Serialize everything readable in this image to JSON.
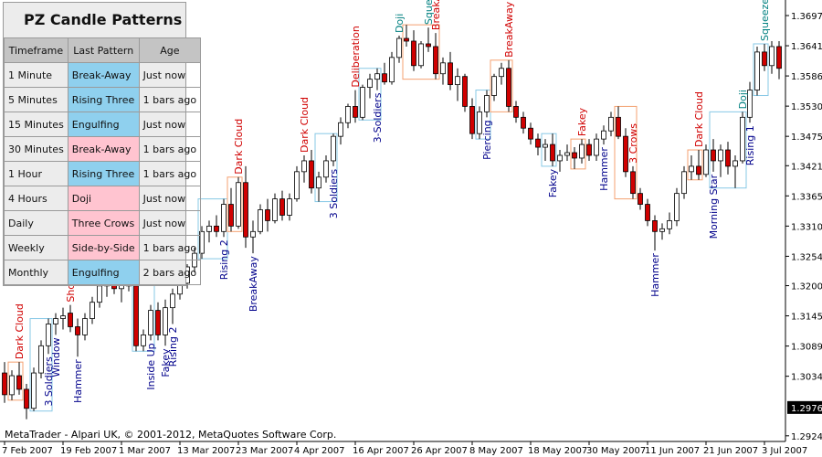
{
  "chart_data": {
    "type": "candlestick",
    "ylim": [
      1.29141,
      1.37172
    ],
    "yticks": [
      {
        "value": 1.3697,
        "label": "1.36970"
      },
      1.36415,
      {
        "value": 1.3586,
        "label": "1.35860"
      },
      1.35305,
      {
        "value": 1.3475,
        "label": "1.34750"
      },
      {
        "value": 1.3421,
        "label": "1.34210"
      },
      1.33655,
      {
        "value": 1.331,
        "label": "1.33100"
      },
      1.32545,
      1.32005,
      {
        "value": 1.3145,
        "label": "1.31450"
      },
      1.30895,
      {
        "value": 1.3034,
        "label": "1.30340"
      },
      1.29245
    ],
    "current_price": 1.29765,
    "bull_color": "#ffffff",
    "bear_color": "#d00000",
    "categories": [
      "7 Feb 2007",
      null,
      null,
      null,
      null,
      null,
      null,
      null,
      "19 Feb 2007",
      null,
      null,
      null,
      null,
      null,
      null,
      null,
      "1 Mar 2007",
      null,
      null,
      null,
      null,
      null,
      null,
      null,
      "13 Mar 2007",
      null,
      null,
      null,
      null,
      null,
      null,
      null,
      "23 Mar 2007",
      null,
      null,
      null,
      null,
      null,
      null,
      null,
      "4 Apr 2007",
      null,
      null,
      null,
      null,
      null,
      null,
      null,
      "16 Apr 2007",
      null,
      null,
      null,
      null,
      null,
      null,
      null,
      "26 Apr 2007",
      null,
      null,
      null,
      null,
      null,
      null,
      null,
      "8 May 2007",
      null,
      null,
      null,
      null,
      null,
      null,
      null,
      "18 May 2007",
      null,
      null,
      null,
      null,
      null,
      null,
      null,
      "30 May 2007",
      null,
      null,
      null,
      null,
      null,
      null,
      null,
      "11 Jun 2007",
      null,
      null,
      null,
      null,
      null,
      null,
      null,
      "21 Jun 2007",
      null,
      null,
      null,
      null,
      null,
      null,
      null,
      "3 Jul 2007",
      null,
      null
    ],
    "ohlc": [
      [
        1.304,
        1.306,
        1.2985,
        1.3
      ],
      [
        1.3,
        1.3045,
        1.299,
        1.3035
      ],
      [
        1.3035,
        1.306,
        1.3,
        1.301
      ],
      [
        1.301,
        1.302,
        1.2955,
        1.2975
      ],
      [
        1.2975,
        1.305,
        1.297,
        1.304
      ],
      [
        1.304,
        1.31,
        1.303,
        1.309
      ],
      [
        1.309,
        1.314,
        1.3075,
        1.313
      ],
      [
        1.313,
        1.315,
        1.311,
        1.314
      ],
      [
        1.314,
        1.316,
        1.312,
        1.3145
      ],
      [
        1.315,
        1.3165,
        1.3115,
        1.3125
      ],
      [
        1.3125,
        1.314,
        1.307,
        1.311
      ],
      [
        1.311,
        1.315,
        1.31,
        1.314
      ],
      [
        1.314,
        1.318,
        1.313,
        1.317
      ],
      [
        1.317,
        1.321,
        1.316,
        1.32
      ],
      [
        1.32,
        1.323,
        1.318,
        1.322
      ],
      [
        1.322,
        1.324,
        1.3185,
        1.3195
      ],
      [
        1.3195,
        1.322,
        1.317,
        1.321
      ],
      [
        1.321,
        1.3225,
        1.319,
        1.32
      ],
      [
        1.32,
        1.321,
        1.308,
        1.309
      ],
      [
        1.309,
        1.312,
        1.308,
        1.311
      ],
      [
        1.311,
        1.3165,
        1.31,
        1.3155
      ],
      [
        1.3155,
        1.317,
        1.31,
        1.311
      ],
      [
        1.311,
        1.3175,
        1.309,
        1.316
      ],
      [
        1.316,
        1.3195,
        1.313,
        1.3185
      ],
      [
        1.3185,
        1.3215,
        1.3175,
        1.3205
      ],
      [
        1.3205,
        1.324,
        1.3195,
        1.3235
      ],
      [
        1.3235,
        1.327,
        1.3225,
        1.326
      ],
      [
        1.326,
        1.331,
        1.325,
        1.33
      ],
      [
        1.33,
        1.332,
        1.328,
        1.331
      ],
      [
        1.331,
        1.333,
        1.329,
        1.33
      ],
      [
        1.33,
        1.336,
        1.329,
        1.335
      ],
      [
        1.335,
        1.338,
        1.33,
        1.331
      ],
      [
        1.331,
        1.34,
        1.3305,
        1.339
      ],
      [
        1.339,
        1.342,
        1.327,
        1.329
      ],
      [
        1.329,
        1.332,
        1.326,
        1.33
      ],
      [
        1.33,
        1.335,
        1.3295,
        1.334
      ],
      [
        1.334,
        1.336,
        1.33,
        1.332
      ],
      [
        1.332,
        1.337,
        1.3315,
        1.336
      ],
      [
        1.336,
        1.3375,
        1.332,
        1.333
      ],
      [
        1.333,
        1.337,
        1.332,
        1.336
      ],
      [
        1.336,
        1.342,
        1.3355,
        1.341
      ],
      [
        1.341,
        1.344,
        1.339,
        1.343
      ],
      [
        1.343,
        1.345,
        1.337,
        1.338
      ],
      [
        1.338,
        1.341,
        1.3355,
        1.34
      ],
      [
        1.34,
        1.344,
        1.339,
        1.343
      ],
      [
        1.343,
        1.348,
        1.342,
        1.3475
      ],
      [
        1.3475,
        1.351,
        1.346,
        1.35
      ],
      [
        1.35,
        1.3535,
        1.349,
        1.353
      ],
      [
        1.353,
        1.356,
        1.35,
        1.351
      ],
      [
        1.351,
        1.357,
        1.3505,
        1.3565
      ],
      [
        1.3565,
        1.359,
        1.3545,
        1.358
      ],
      [
        1.358,
        1.36,
        1.356,
        1.359
      ],
      [
        1.359,
        1.361,
        1.357,
        1.3575
      ],
      [
        1.3575,
        1.363,
        1.357,
        1.362
      ],
      [
        1.362,
        1.366,
        1.361,
        1.3655
      ],
      [
        1.3655,
        1.368,
        1.364,
        1.365
      ],
      [
        1.365,
        1.367,
        1.3595,
        1.3605
      ],
      [
        1.3605,
        1.365,
        1.36,
        1.3645
      ],
      [
        1.3645,
        1.3675,
        1.363,
        1.364
      ],
      [
        1.364,
        1.3665,
        1.358,
        1.359
      ],
      [
        1.359,
        1.362,
        1.357,
        1.361
      ],
      [
        1.361,
        1.363,
        1.356,
        1.357
      ],
      [
        1.357,
        1.36,
        1.354,
        1.3585
      ],
      [
        1.3585,
        1.359,
        1.352,
        1.353
      ],
      [
        1.353,
        1.3545,
        1.347,
        1.348
      ],
      [
        1.348,
        1.353,
        1.347,
        1.352
      ],
      [
        1.352,
        1.356,
        1.351,
        1.355
      ],
      [
        1.355,
        1.359,
        1.354,
        1.3585
      ],
      [
        1.3585,
        1.361,
        1.357,
        1.36
      ],
      [
        1.36,
        1.3615,
        1.352,
        1.353
      ],
      [
        1.353,
        1.354,
        1.35,
        1.351
      ],
      [
        1.351,
        1.352,
        1.348,
        1.349
      ],
      [
        1.349,
        1.35,
        1.346,
        1.347
      ],
      [
        1.347,
        1.348,
        1.344,
        1.3455
      ],
      [
        1.3455,
        1.347,
        1.343,
        1.346
      ],
      [
        1.346,
        1.348,
        1.342,
        1.343
      ],
      [
        1.343,
        1.345,
        1.341,
        1.344
      ],
      [
        1.344,
        1.346,
        1.343,
        1.3445
      ],
      [
        1.3445,
        1.3455,
        1.3415,
        1.3435
      ],
      [
        1.3435,
        1.347,
        1.3425,
        1.346
      ],
      [
        1.346,
        1.347,
        1.343,
        1.344
      ],
      [
        1.344,
        1.348,
        1.343,
        1.347
      ],
      [
        1.347,
        1.3495,
        1.346,
        1.3485
      ],
      [
        1.3485,
        1.352,
        1.3475,
        1.351
      ],
      [
        1.351,
        1.353,
        1.347,
        1.3475
      ],
      [
        1.3475,
        1.349,
        1.34,
        1.341
      ],
      [
        1.341,
        1.342,
        1.336,
        1.337
      ],
      [
        1.337,
        1.338,
        1.334,
        1.335
      ],
      [
        1.335,
        1.336,
        1.331,
        1.332
      ],
      [
        1.332,
        1.333,
        1.3265,
        1.33
      ],
      [
        1.33,
        1.3315,
        1.3285,
        1.3305
      ],
      [
        1.3305,
        1.3335,
        1.3295,
        1.332
      ],
      [
        1.332,
        1.338,
        1.331,
        1.337
      ],
      [
        1.337,
        1.342,
        1.336,
        1.341
      ],
      [
        1.341,
        1.344,
        1.3395,
        1.342
      ],
      [
        1.342,
        1.345,
        1.3395,
        1.3405
      ],
      [
        1.3405,
        1.346,
        1.34,
        1.345
      ],
      [
        1.345,
        1.347,
        1.341,
        1.343
      ],
      [
        1.343,
        1.346,
        1.34,
        1.345
      ],
      [
        1.345,
        1.3465,
        1.3405,
        1.342
      ],
      [
        1.342,
        1.344,
        1.338,
        1.343
      ],
      [
        1.343,
        1.352,
        1.3425,
        1.351
      ],
      [
        1.351,
        1.3575,
        1.35,
        1.356
      ],
      [
        1.356,
        1.364,
        1.355,
        1.363
      ],
      [
        1.363,
        1.3645,
        1.3595,
        1.3605
      ],
      [
        1.3605,
        1.365,
        1.359,
        1.364
      ],
      [
        1.364,
        1.365,
        1.358,
        1.36
      ]
    ],
    "pattern_colors": {
      "bullish": {
        "text": "#00008b",
        "box": "#87c8e6"
      },
      "bearish": {
        "text": "#d00000",
        "box": "#f4a070"
      },
      "neutral": {
        "text": "#008080",
        "box": "#87c8e6"
      }
    },
    "patterns": [
      {
        "label": "Dark Cloud",
        "index": 2,
        "kind": "bearish",
        "span": 2
      },
      {
        "label": "3 Soldiers",
        "index": 6,
        "kind": "bullish",
        "span": 3
      },
      {
        "label": "Window",
        "index": 7,
        "kind": "bullish"
      },
      {
        "label": "Shooting Star",
        "index": 9,
        "kind": "bearish"
      },
      {
        "label": "Hammer",
        "index": 10,
        "kind": "bullish"
      },
      {
        "label": "Inside Up",
        "index": 20,
        "kind": "bullish",
        "span": 3
      },
      {
        "label": "Fakey",
        "index": 22,
        "kind": "bullish"
      },
      {
        "label": "Rising 2",
        "index": 23,
        "kind": "bullish"
      },
      {
        "label": "Rising 2",
        "index": 30,
        "kind": "bullish",
        "span": 4
      },
      {
        "label": "Dark Cloud",
        "index": 32,
        "kind": "bearish",
        "span": 2
      },
      {
        "label": "BreakAway",
        "index": 34,
        "kind": "bullish"
      },
      {
        "label": "Dark Cloud",
        "index": 41,
        "kind": "bearish"
      },
      {
        "label": "3 Soldiers",
        "index": 45,
        "kind": "bullish",
        "span": 3
      },
      {
        "label": "Deliberation",
        "index": 48,
        "kind": "bearish"
      },
      {
        "label": "3-Soldiers",
        "index": 51,
        "kind": "bullish",
        "span": 3
      },
      {
        "label": "Doji",
        "index": 54,
        "kind": "neutral"
      },
      {
        "label": "Squeeze",
        "index": 58,
        "kind": "neutral"
      },
      {
        "label": "BreakAway",
        "index": 59,
        "kind": "bearish",
        "span": 5
      },
      {
        "label": "Piercing",
        "index": 66,
        "kind": "bullish",
        "span": 2
      },
      {
        "label": "BreakAway",
        "index": 69,
        "kind": "bearish",
        "span": 3
      },
      {
        "label": "Fakey",
        "index": 75,
        "kind": "bullish",
        "span": 2
      },
      {
        "label": "Fakey",
        "index": 79,
        "kind": "bearish",
        "span": 2
      },
      {
        "label": "Hammer",
        "index": 82,
        "kind": "bullish"
      },
      {
        "label": "3 Crows",
        "index": 86,
        "kind": "bearish",
        "span": 3
      },
      {
        "label": "Hammer",
        "index": 89,
        "kind": "bullish"
      },
      {
        "label": "Dark Cloud",
        "index": 95,
        "kind": "bearish",
        "span": 2
      },
      {
        "label": "Morning Star",
        "index": 97,
        "kind": "bullish"
      },
      {
        "label": "Doji",
        "index": 101,
        "kind": "neutral",
        "span": 5
      },
      {
        "label": "Rising 1",
        "index": 102,
        "kind": "bullish"
      },
      {
        "label": "Squeeze",
        "index": 104,
        "kind": "neutral",
        "span": 2
      }
    ]
  },
  "panel": {
    "title": "PZ Candle Patterns",
    "header": [
      "Timeframe",
      "Last Pattern",
      "Age"
    ],
    "rows": [
      [
        "1 Minute",
        "Break-Away",
        "Just now"
      ],
      [
        "5 Minutes",
        "Rising Three",
        "1 bars ago"
      ],
      [
        "15 Minutes",
        "Engulfing",
        "Just now"
      ],
      [
        "30 Minutes",
        "Break-Away",
        "1 bars ago"
      ],
      [
        "1 Hour",
        "Rising Three",
        "1 bars ago"
      ],
      [
        "4 Hours",
        "Doji",
        "Just now"
      ],
      [
        "Daily",
        "Three Crows",
        "Just now"
      ],
      [
        "Weekly",
        "Side-by-Side",
        "1 bars ago"
      ],
      [
        "Monthly",
        "Engulfing",
        "2 bars ago"
      ]
    ],
    "pattern_colors": [
      "#8fd0ee",
      "#8fd0ee",
      "#8fd0ee",
      "#ffc4d0",
      "#8fd0ee",
      "#ffc4d0",
      "#ffc4d0",
      "#ffc4d0",
      "#8fd0ee"
    ]
  },
  "footer": "MetaTrader - Alpari UK, © 2001-2012, MetaQuotes Software Corp."
}
